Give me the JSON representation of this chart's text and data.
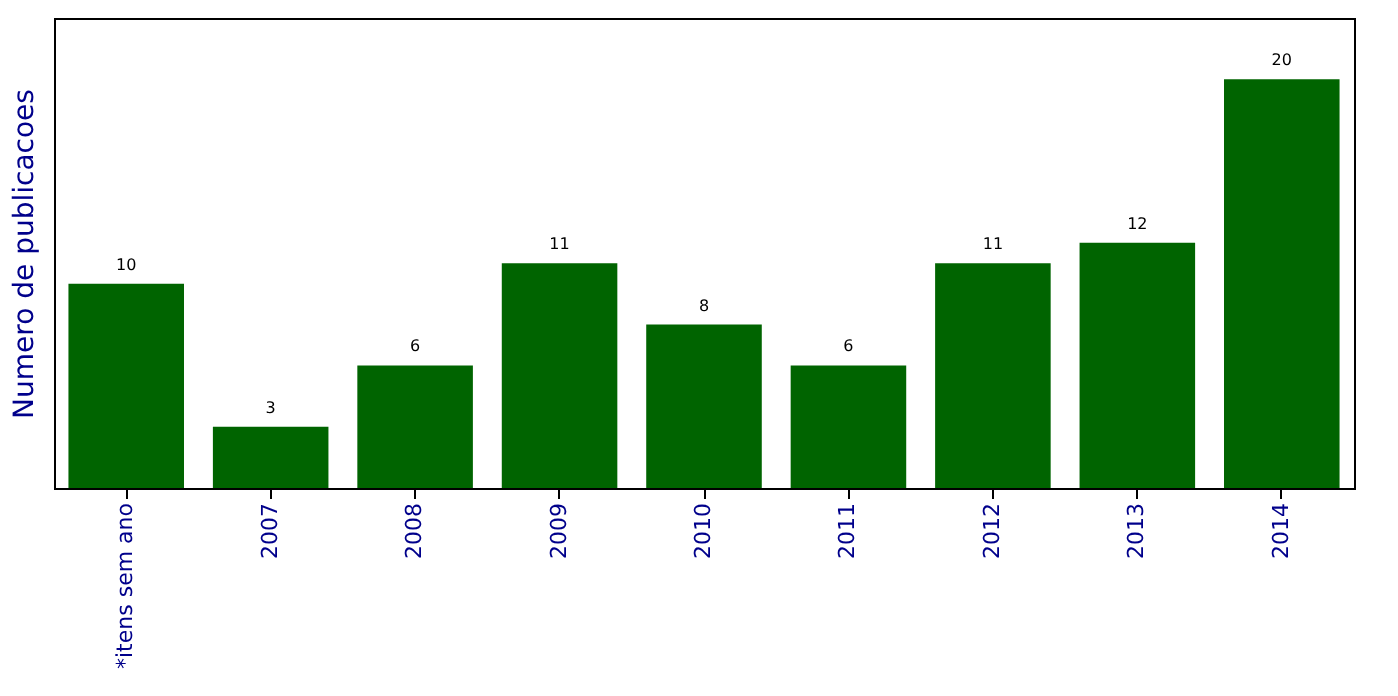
{
  "chart_data": {
    "type": "bar",
    "ylabel": "Numero de publicacoes",
    "categories": [
      "*itens sem ano",
      "2007",
      "2008",
      "2009",
      "2010",
      "2011",
      "2012",
      "2013",
      "2014"
    ],
    "values": [
      10,
      3,
      6,
      11,
      8,
      6,
      11,
      12,
      20
    ],
    "color": "#006400",
    "ylim": [
      0,
      23
    ],
    "data_labels": true,
    "tick_labels": "x",
    "grid": false
  }
}
